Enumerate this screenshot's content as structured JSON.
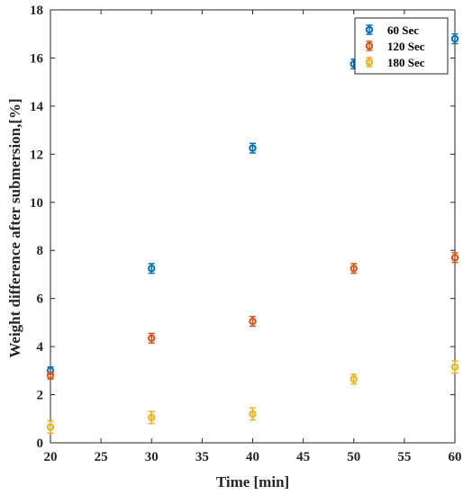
{
  "chart_data": {
    "type": "scatter",
    "title": "",
    "xlabel": "Time [min]",
    "ylabel": "Weight difference after submersion,[%]",
    "xlim": [
      20,
      60
    ],
    "ylim": [
      0,
      18
    ],
    "xticks": [
      "20",
      "25",
      "30",
      "35",
      "40",
      "45",
      "50",
      "55",
      "60"
    ],
    "yticks": [
      "0",
      "2",
      "4",
      "6",
      "8",
      "10",
      "12",
      "14",
      "16",
      "18"
    ],
    "grid": false,
    "legend_position": "top-right",
    "error_bars": true,
    "series": [
      {
        "name": "60 Sec",
        "color": "#0072BD",
        "x": [
          20,
          30,
          40,
          50,
          60
        ],
        "y": [
          3.0,
          7.25,
          12.25,
          15.75,
          16.8
        ],
        "err": [
          0.15,
          0.2,
          0.2,
          0.2,
          0.2
        ]
      },
      {
        "name": "120 Sec",
        "color": "#D95319",
        "x": [
          20,
          30,
          40,
          50,
          60
        ],
        "y": [
          2.8,
          4.35,
          5.05,
          7.25,
          7.7
        ],
        "err": [
          0.15,
          0.2,
          0.2,
          0.2,
          0.2
        ]
      },
      {
        "name": "180 Sec",
        "color": "#EDB120",
        "x": [
          20,
          30,
          40,
          50,
          60
        ],
        "y": [
          0.65,
          1.05,
          1.2,
          2.65,
          3.15
        ],
        "err": [
          0.25,
          0.25,
          0.25,
          0.2,
          0.25
        ]
      }
    ]
  }
}
